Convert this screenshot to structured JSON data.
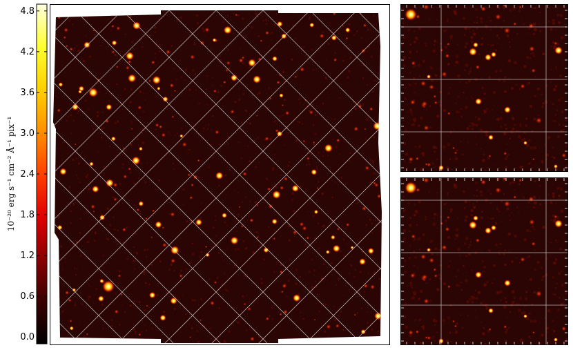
{
  "colorbar": {
    "label": "10⁻²⁰ erg s⁻¹ cm⁻² Å⁻¹ pix⁻¹",
    "ticks": [
      {
        "label": "4.8",
        "value": 4.8
      },
      {
        "label": "4.2",
        "value": 4.2
      },
      {
        "label": "3.6",
        "value": 3.6
      },
      {
        "label": "3.0",
        "value": 3.0
      },
      {
        "label": "2.4",
        "value": 2.4
      },
      {
        "label": "1.8",
        "value": 1.8
      },
      {
        "label": "1.2",
        "value": 1.2
      },
      {
        "label": "0.6",
        "value": 0.6
      },
      {
        "label": "0.0",
        "value": 0.0
      }
    ],
    "range": [
      -0.1,
      4.9
    ],
    "colormap": "hot",
    "colors": [
      "#000000",
      "#3a0000",
      "#8a0000",
      "#e00000",
      "#ff4000",
      "#ff9000",
      "#ffd000",
      "#ffff30",
      "#ffffe0"
    ]
  },
  "panels": {
    "main": {
      "grid_overlay": "diagonal",
      "background_color": "#2a0503"
    },
    "zoom_top": {
      "grid_overlay": "rectilinear"
    },
    "zoom_bottom": {
      "grid_overlay": "rectilinear"
    }
  }
}
